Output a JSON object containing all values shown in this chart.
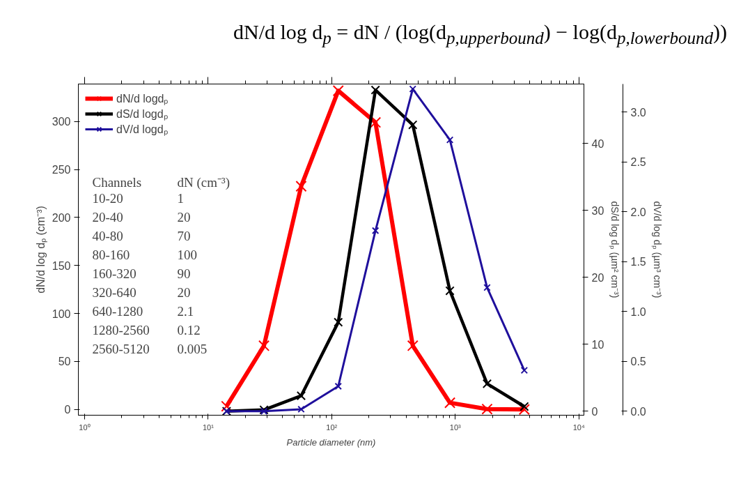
{
  "chart_data": {
    "type": "line",
    "x": [
      14.1,
      28.3,
      56.6,
      113,
      226,
      453,
      905,
      1810,
      3620
    ],
    "xlabel": "Particle diameter (nm)",
    "ylabel": "dN/d log dₚ (cm⁻³)",
    "y2label": "dS/d log dₚ (µm² cm⁻³)",
    "y3label": "dV/d log dₚ (µm³ cm⁻³)",
    "xlim": [
      0.89,
      11000
    ],
    "xticks": [
      {
        "value": 1,
        "label": "10⁰"
      },
      {
        "value": 10,
        "label": "10¹"
      },
      {
        "value": 100,
        "label": "10²"
      },
      {
        "value": 1000,
        "label": "10³"
      },
      {
        "value": 10000,
        "label": "10⁴"
      }
    ],
    "log": "x",
    "ylim": [
      -6,
      339
    ],
    "yticks": [
      0,
      50,
      100,
      150,
      200,
      250,
      300
    ],
    "y2lim": [
      -0.6,
      48.9
    ],
    "y2ticks": [
      0,
      10,
      20,
      30,
      40
    ],
    "y3lim": [
      -0.04,
      3.28
    ],
    "y3ticks": [
      {
        "value": 0,
        "label": "0.0"
      },
      {
        "value": 0.5,
        "label": "0.5"
      },
      {
        "value": 1,
        "label": "1.0"
      },
      {
        "value": 1.5,
        "label": "1.5"
      },
      {
        "value": 2,
        "label": "2.0"
      },
      {
        "value": 2.5,
        "label": "2.5"
      },
      {
        "value": 3,
        "label": "3.0"
      }
    ],
    "grid": false,
    "legend": "top left",
    "marker": "cross",
    "line_style": "solid",
    "series": [
      {
        "name": "dN/d logdₚ",
        "color": "#ff0000",
        "axis": "y",
        "values": [
          3.3,
          66.4,
          232.5,
          332,
          299,
          66.4,
          7.0,
          0.4,
          0
        ]
      },
      {
        "name": "dS/d logdₚ",
        "color": "#000000",
        "axis": "y2",
        "values": [
          0.0,
          0.2,
          2.3,
          13.3,
          48.0,
          42.8,
          18.0,
          4.1,
          0.7
        ]
      },
      {
        "name": "dV/d logdₚ",
        "color": "#1f0f9c",
        "axis": "y3",
        "values": [
          0.0,
          0.0,
          0.02,
          0.25,
          1.81,
          3.23,
          2.72,
          1.24,
          0.41
        ]
      }
    ],
    "annotations": [
      "dN/d log d$_{p}$ = dN / (log(d$_{p,upperbound}$) − log(d$_{p,lowerbound}$))",
      "Channels",
      "dN (cm⁻³)",
      "10-20",
      "1",
      "20-40",
      "20",
      "40-80",
      "70",
      "80-160",
      "100",
      "160-320",
      "90",
      "320-640",
      "20",
      "640-1280",
      "2.1",
      "1280-2560",
      "0.12",
      "2560-5120",
      "0.005"
    ]
  }
}
